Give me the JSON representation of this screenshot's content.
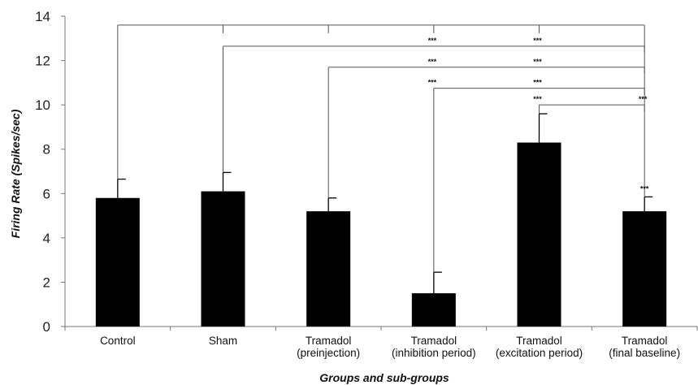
{
  "chart_data": {
    "type": "bar",
    "title": "",
    "xlabel": "Groups and sub-groups",
    "ylabel": "Firing Rate (Spikes/sec)",
    "ylim": [
      0,
      14
    ],
    "yticks": [
      0,
      2,
      4,
      6,
      8,
      10,
      12,
      14
    ],
    "categories": [
      [
        "Control"
      ],
      [
        "Sham"
      ],
      [
        "Tramadol",
        "(preinjection)"
      ],
      [
        "Tramadol",
        "(inhibition period)"
      ],
      [
        "Tramadol",
        "(excitation period)"
      ],
      [
        "Tramadol",
        "(final baseline)"
      ]
    ],
    "values": [
      5.8,
      6.1,
      5.2,
      1.5,
      8.3,
      5.2
    ],
    "errors": [
      0.85,
      0.85,
      0.6,
      0.95,
      1.3,
      0.65
    ],
    "bar_color": "#000000",
    "grid": false,
    "significance": {
      "brackets": [
        {
          "from": 0,
          "to": 5,
          "y": 13.6,
          "drops": [
            1,
            2,
            3,
            4
          ],
          "marks": []
        },
        {
          "from": 1,
          "to": 5,
          "y": 12.65,
          "drops": [],
          "marks": [
            {
              "at": 3,
              "text": "***"
            },
            {
              "at": 4,
              "text": "***"
            }
          ]
        },
        {
          "from": 2,
          "to": 5,
          "y": 11.7,
          "drops": [],
          "marks": [
            {
              "at": 3,
              "text": "***"
            },
            {
              "at": 4,
              "text": "***"
            }
          ]
        },
        {
          "from": 3,
          "to": 5,
          "y": 10.75,
          "drops": [],
          "marks": [
            {
              "at": 3,
              "text": "***"
            },
            {
              "at": 4,
              "text": "***"
            }
          ]
        },
        {
          "from": 4,
          "to": 5,
          "y": 10.0,
          "drops": [],
          "marks": [
            {
              "at": 4,
              "text": "***"
            },
            {
              "at": 5,
              "text": "***"
            }
          ]
        }
      ],
      "bar_marks": [
        {
          "bar": 5,
          "text": "***"
        }
      ]
    }
  }
}
